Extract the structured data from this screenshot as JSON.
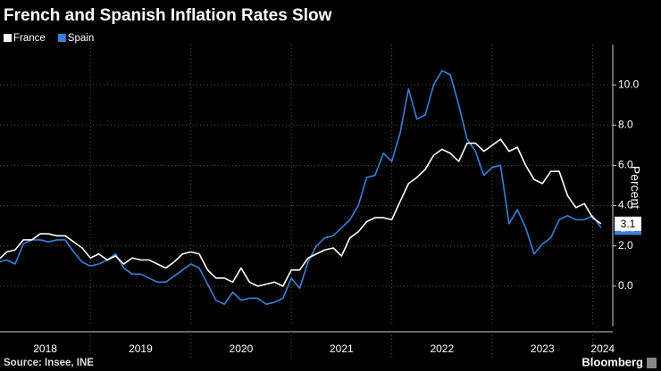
{
  "chart_data": {
    "type": "line",
    "title": "French and Spanish Inflation Rates Slow",
    "y_label": "Percent",
    "source": "Source: Insee, INE",
    "credit": "Bloomberg",
    "x": [
      2018.083,
      2018.167,
      2018.25,
      2018.333,
      2018.417,
      2018.5,
      2018.583,
      2018.667,
      2018.75,
      2018.833,
      2018.917,
      2019.0,
      2019.083,
      2019.167,
      2019.25,
      2019.333,
      2019.417,
      2019.5,
      2019.583,
      2019.667,
      2019.75,
      2019.833,
      2019.917,
      2020.0,
      2020.083,
      2020.167,
      2020.25,
      2020.333,
      2020.417,
      2020.5,
      2020.583,
      2020.667,
      2020.75,
      2020.833,
      2020.917,
      2021.0,
      2021.083,
      2021.167,
      2021.25,
      2021.333,
      2021.417,
      2021.5,
      2021.583,
      2021.667,
      2021.75,
      2021.833,
      2021.917,
      2022.0,
      2022.083,
      2022.167,
      2022.25,
      2022.333,
      2022.417,
      2022.5,
      2022.583,
      2022.667,
      2022.75,
      2022.833,
      2022.917,
      2023.0,
      2023.083,
      2023.167,
      2023.25,
      2023.333,
      2023.417,
      2023.5,
      2023.583,
      2023.667,
      2023.75,
      2023.833,
      2023.917,
      2024.0,
      2024.083
    ],
    "series": [
      {
        "name": "France",
        "color": "#ffffff",
        "values": [
          1.3,
          1.7,
          1.8,
          2.3,
          2.3,
          2.6,
          2.6,
          2.5,
          2.5,
          2.2,
          1.9,
          1.4,
          1.6,
          1.3,
          1.5,
          1.1,
          1.4,
          1.3,
          1.3,
          1.1,
          0.9,
          1.2,
          1.6,
          1.7,
          1.6,
          0.8,
          0.4,
          0.4,
          0.2,
          0.9,
          0.2,
          0.0,
          0.1,
          0.2,
          0.0,
          0.8,
          0.8,
          1.4,
          1.6,
          1.8,
          1.9,
          1.5,
          2.4,
          2.7,
          3.2,
          3.4,
          3.4,
          3.3,
          4.2,
          5.1,
          5.4,
          5.8,
          6.5,
          6.8,
          6.6,
          6.2,
          7.1,
          7.1,
          6.7,
          7.0,
          7.3,
          6.7,
          6.9,
          6.0,
          5.3,
          5.1,
          5.7,
          5.7,
          4.5,
          3.9,
          4.1,
          3.4,
          3.1
        ]
      },
      {
        "name": "Spain",
        "color": "#3a80d9",
        "values": [
          1.2,
          1.3,
          1.1,
          2.1,
          2.3,
          2.3,
          2.2,
          2.3,
          2.3,
          1.7,
          1.2,
          1.0,
          1.1,
          1.3,
          1.6,
          0.9,
          0.6,
          0.6,
          0.4,
          0.2,
          0.2,
          0.5,
          0.8,
          1.1,
          0.9,
          0.1,
          -0.7,
          -0.9,
          -0.3,
          -0.7,
          -0.6,
          -0.6,
          -0.9,
          -0.8,
          -0.6,
          0.4,
          -0.1,
          1.2,
          2.0,
          2.4,
          2.5,
          2.9,
          3.3,
          4.0,
          5.4,
          5.5,
          6.6,
          6.2,
          7.6,
          9.8,
          8.3,
          8.5,
          10.0,
          10.7,
          10.5,
          9.0,
          7.3,
          6.7,
          5.5,
          5.9,
          6.0,
          3.1,
          3.8,
          2.9,
          1.6,
          2.1,
          2.4,
          3.3,
          3.5,
          3.3,
          3.3,
          3.5,
          2.9
        ]
      }
    ],
    "xlim": [
      2018.1,
      2024.2
    ],
    "xticks": [
      {
        "value": 2018,
        "label": "2018"
      },
      {
        "value": 2019,
        "label": "2019"
      },
      {
        "value": 2020,
        "label": "2020"
      },
      {
        "value": 2021,
        "label": "2021"
      },
      {
        "value": 2022,
        "label": "2022"
      },
      {
        "value": 2023,
        "label": "2023"
      },
      {
        "value": 2024,
        "label": "2024"
      }
    ],
    "ylim": [
      -2,
      12
    ],
    "yticks": [
      {
        "value": 0,
        "label": "0.0"
      },
      {
        "value": 2,
        "label": "2.0"
      },
      {
        "value": 4,
        "label": "4.0"
      },
      {
        "value": 6,
        "label": "6.0"
      },
      {
        "value": 8,
        "label": "8.0"
      },
      {
        "value": 10,
        "label": "10.0"
      }
    ],
    "grid": true,
    "legend": "top-left"
  }
}
